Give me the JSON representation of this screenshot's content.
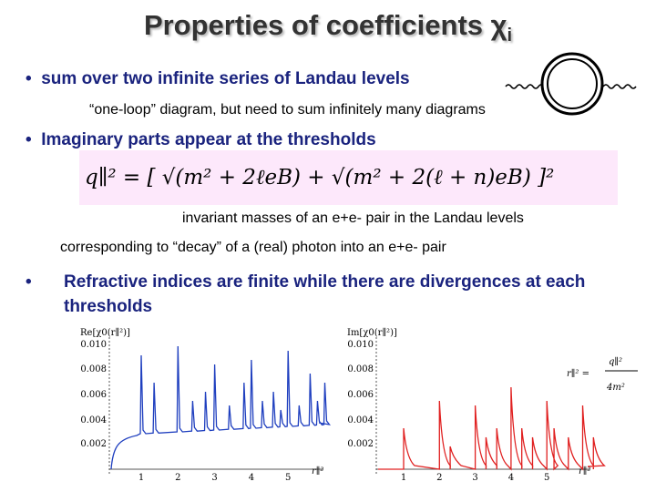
{
  "title": {
    "text": "Properties of coefficients χ",
    "subscript": "i"
  },
  "bullets": [
    {
      "text": "sum over two infinite series of Landau levels",
      "note": "“one-loop” diagram, but need to sum infinitely many diagrams"
    },
    {
      "text": "Imaginary parts appear at the thresholds",
      "formula": "q∥² = [ √(m² + 2ℓeB) + √(m² + 2(ℓ + n)eB) ]²",
      "notes": [
        "invariant masses of an e+e- pair in the Landau levels",
        "corresponding to “decay” of a (real) photon into an e+e- pair"
      ]
    },
    {
      "text": "Refractive indices are finite while there are divergences at each thresholds"
    }
  ],
  "plots": [
    {
      "label": "Re[χ0(r∥²)]",
      "yticks": [
        "0.010",
        "0.008",
        "0.006",
        "0.004",
        "0.002"
      ],
      "xticks": [
        "1",
        "2",
        "3",
        "4",
        "5"
      ],
      "xlabel": "r∥²"
    },
    {
      "label": "Im[χ0(r∥²)]",
      "yticks": [
        "0.010",
        "0.008",
        "0.006",
        "0.004",
        "0.002"
      ],
      "xticks": [
        "1",
        "2",
        "3",
        "4",
        "5"
      ],
      "xlabel": "r∥²"
    }
  ],
  "inset": {
    "lhs": "r∥² =",
    "num": "q∥²",
    "den": "4m²"
  }
}
